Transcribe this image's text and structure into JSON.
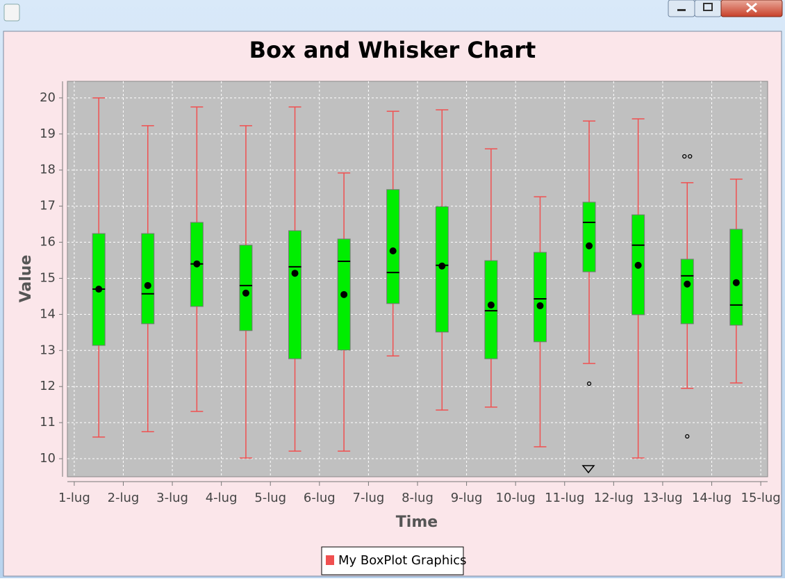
{
  "chart_data": {
    "type": "box",
    "title": "Box and Whisker Chart",
    "x_label": "Time",
    "y_label": "Value",
    "xlim": [
      0.86,
      15.14
    ],
    "xticks": [
      {
        "value": 1,
        "label": "1-lug"
      },
      {
        "value": 2,
        "label": "2-lug"
      },
      {
        "value": 3,
        "label": "3-lug"
      },
      {
        "value": 4,
        "label": "4-lug"
      },
      {
        "value": 5,
        "label": "5-lug"
      },
      {
        "value": 6,
        "label": "6-lug"
      },
      {
        "value": 7,
        "label": "7-lug"
      },
      {
        "value": 8,
        "label": "8-lug"
      },
      {
        "value": 9,
        "label": "9-lug"
      },
      {
        "value": 10,
        "label": "10-lug"
      },
      {
        "value": 11,
        "label": "11-lug"
      },
      {
        "value": 12,
        "label": "12-lug"
      },
      {
        "value": 13,
        "label": "13-lug"
      },
      {
        "value": 14,
        "label": "14-lug"
      },
      {
        "value": 15,
        "label": "15-lug"
      }
    ],
    "ylim": [
      9.5,
      20.46
    ],
    "yticks": [
      10,
      11,
      12,
      13,
      14,
      15,
      16,
      17,
      18,
      19,
      20
    ],
    "grid": true,
    "legend": "bottom",
    "series": [
      {
        "name": "My BoxPlot Graphics",
        "color": "#00ee00",
        "whisker_color": "#f05050",
        "x": [
          1.5,
          2.5,
          3.5,
          4.5,
          5.5,
          6.5,
          7.5,
          8.5,
          9.5,
          10.5,
          11.5,
          12.5,
          13.5,
          14.5
        ],
        "boxes": [
          {
            "min": 10.6,
            "q1": 13.14,
            "median": 14.7,
            "q3": 16.24,
            "max": 20.0,
            "mean": 14.7,
            "outliers": []
          },
          {
            "min": 10.75,
            "q1": 13.74,
            "median": 14.57,
            "q3": 16.24,
            "max": 19.23,
            "mean": 14.8,
            "outliers": []
          },
          {
            "min": 11.31,
            "q1": 14.22,
            "median": 15.4,
            "q3": 16.55,
            "max": 19.75,
            "mean": 15.4,
            "outliers": []
          },
          {
            "min": 10.02,
            "q1": 13.55,
            "median": 14.8,
            "q3": 15.92,
            "max": 19.23,
            "mean": 14.59,
            "outliers": []
          },
          {
            "min": 10.21,
            "q1": 12.77,
            "median": 15.32,
            "q3": 16.32,
            "max": 19.75,
            "mean": 15.14,
            "outliers": []
          },
          {
            "min": 10.21,
            "q1": 13.01,
            "median": 15.47,
            "q3": 16.09,
            "max": 17.92,
            "mean": 14.55,
            "outliers": []
          },
          {
            "min": 12.85,
            "q1": 14.3,
            "median": 15.16,
            "q3": 17.46,
            "max": 19.63,
            "mean": 15.76,
            "outliers": []
          },
          {
            "min": 11.35,
            "q1": 13.51,
            "median": 15.36,
            "q3": 16.99,
            "max": 19.67,
            "mean": 15.34,
            "outliers": []
          },
          {
            "min": 11.43,
            "q1": 12.77,
            "median": 14.1,
            "q3": 15.49,
            "max": 18.59,
            "mean": 14.26,
            "outliers": []
          },
          {
            "min": 10.33,
            "q1": 13.24,
            "median": 14.43,
            "q3": 15.72,
            "max": 17.26,
            "mean": 14.24,
            "outliers": []
          },
          {
            "min": 12.64,
            "q1": 15.18,
            "median": 16.55,
            "q3": 17.11,
            "max": 19.36,
            "mean": 15.9,
            "outliers": [
              12.08
            ]
          },
          {
            "min": 10.02,
            "q1": 13.99,
            "median": 15.92,
            "q3": 16.76,
            "max": 19.42,
            "mean": 15.36,
            "outliers": []
          },
          {
            "min": 11.95,
            "q1": 13.74,
            "median": 15.07,
            "q3": 15.53,
            "max": 17.65,
            "mean": 14.84,
            "outliers": [
              18.38,
              18.38,
              10.62
            ]
          },
          {
            "min": 12.1,
            "q1": 13.7,
            "median": 14.26,
            "q3": 16.36,
            "max": 17.75,
            "mean": 14.88,
            "outliers": []
          }
        ]
      }
    ]
  }
}
